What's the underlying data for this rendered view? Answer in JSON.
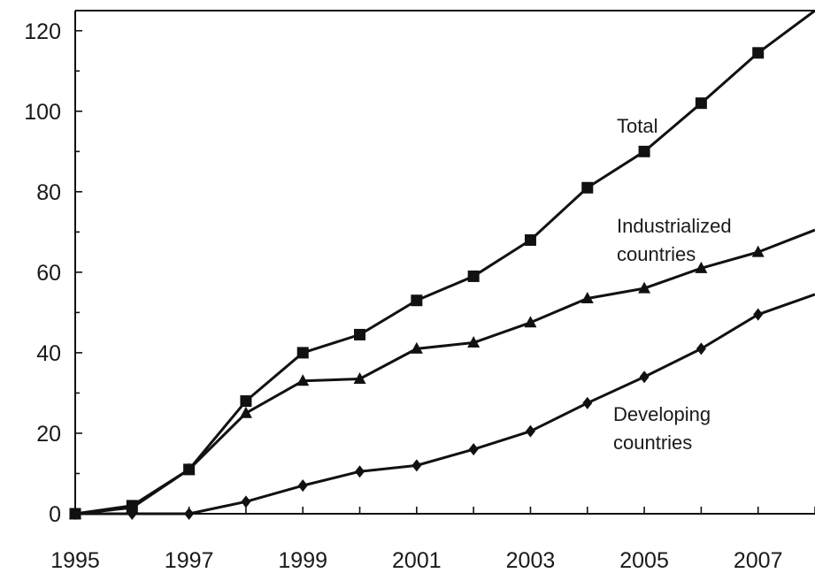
{
  "chart_data": {
    "type": "line",
    "title": "",
    "xlabel": "",
    "ylabel": "",
    "xlim": [
      1995,
      2008
    ],
    "ylim": [
      0,
      125
    ],
    "x_ticks": [
      "1995",
      "1997",
      "1999",
      "2001",
      "2003",
      "2005",
      "2007"
    ],
    "y_ticks": [
      "0",
      "20",
      "40",
      "60",
      "80",
      "100",
      "120"
    ],
    "x": [
      1995,
      1996,
      1997,
      1998,
      1999,
      2000,
      2001,
      2002,
      2003,
      2004,
      2005,
      2006,
      2007,
      2008
    ],
    "series": [
      {
        "key": "total",
        "label_lines": [
          "Total"
        ],
        "marker": "square",
        "values": [
          0,
          2,
          11,
          28,
          40,
          44.5,
          53,
          59,
          68,
          81,
          90,
          102,
          114.5,
          125
        ]
      },
      {
        "key": "industrialized",
        "label_lines": [
          "Industrialized",
          "countries"
        ],
        "marker": "triangle",
        "values": [
          0,
          1.5,
          11,
          25,
          33,
          33.5,
          41,
          42.5,
          47.5,
          53.5,
          56,
          61,
          65,
          70.5
        ]
      },
      {
        "key": "developing",
        "label_lines": [
          "Developing",
          "countries"
        ],
        "marker": "diamond",
        "values": [
          0,
          0,
          0,
          3,
          7,
          10.5,
          12,
          16,
          20.5,
          27.5,
          34,
          41,
          49.5,
          54.5
        ]
      }
    ],
    "grid": false,
    "legend": "inline labels"
  }
}
